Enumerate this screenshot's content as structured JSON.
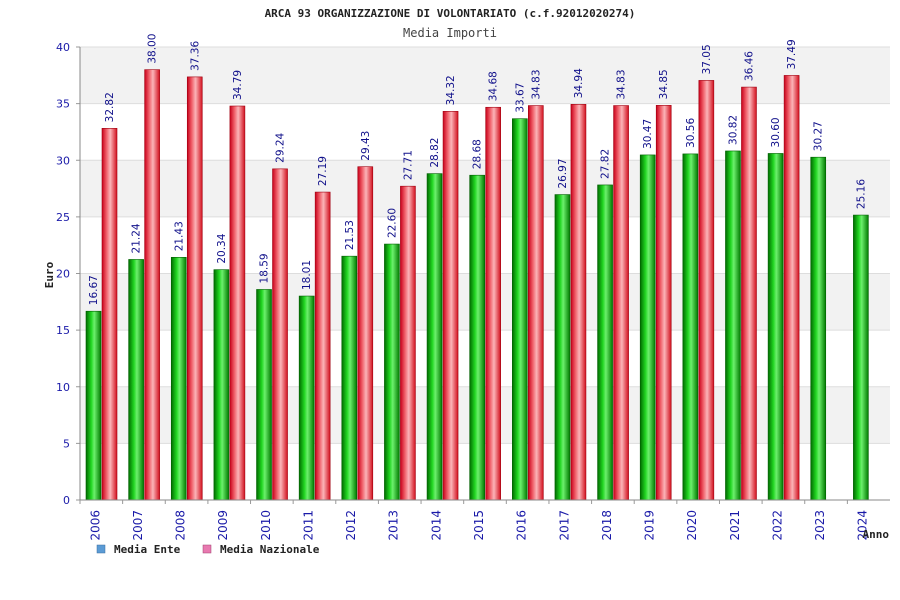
{
  "chart_data": {
    "type": "bar",
    "title": "ARCA 93 ORGANIZZAZIONE DI VOLONTARIATO (c.f.92012020274)",
    "subtitle": "Media Importi",
    "xlabel": "Anno",
    "ylabel": "Euro",
    "ylim": [
      0,
      40
    ],
    "y_ticks": [
      "0",
      "5",
      "10",
      "15",
      "20",
      "25",
      "30",
      "35",
      "40"
    ],
    "categories": [
      "2006",
      "2007",
      "2008",
      "2009",
      "2010",
      "2011",
      "2012",
      "2013",
      "2014",
      "2015",
      "2016",
      "2017",
      "2018",
      "2019",
      "2020",
      "2021",
      "2022",
      "2023",
      "2024"
    ],
    "series": [
      {
        "name": "Media Ente",
        "color": "#00b400",
        "values": [
          16.67,
          21.24,
          21.43,
          20.34,
          18.59,
          18.01,
          21.53,
          22.6,
          28.82,
          28.68,
          33.67,
          26.97,
          27.82,
          30.47,
          30.56,
          30.82,
          30.6,
          30.27,
          25.16
        ],
        "labels": [
          "16.67",
          "21.24",
          "21.43",
          "20.34",
          "18.59",
          "18.01",
          "21.53",
          "22.60",
          "28.82",
          "28.68",
          "33.67",
          "26.97",
          "27.82",
          "30.47",
          "30.56",
          "30.82",
          "30.60",
          "30.27",
          "25.16"
        ]
      },
      {
        "name": "Media Nazionale",
        "color": "#e8202a",
        "values": [
          32.82,
          38.0,
          37.36,
          34.79,
          29.24,
          27.19,
          29.43,
          27.71,
          34.32,
          34.68,
          34.83,
          34.94,
          34.83,
          34.85,
          37.05,
          36.46,
          37.49,
          null,
          null
        ],
        "labels": [
          "32.82",
          "38.00",
          "37.36",
          "34.79",
          "29.24",
          "27.19",
          "29.43",
          "27.71",
          "34.32",
          "34.68",
          "34.83",
          "34.94",
          "34.83",
          "34.85",
          "37.05",
          "36.46",
          "37.49",
          null,
          null
        ]
      }
    ],
    "legend": [
      {
        "label": "Media Ente",
        "color": "#5b9bd5"
      },
      {
        "label": "Media Nazionale",
        "color": "#e879b0"
      }
    ],
    "legend_position": "bottom-left",
    "grid": true
  }
}
